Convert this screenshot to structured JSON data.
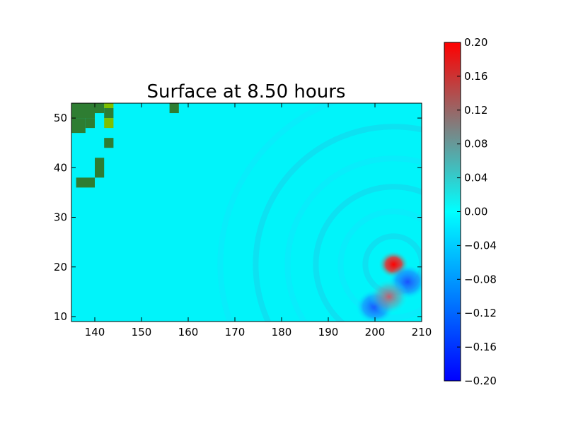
{
  "chart_data": {
    "type": "heatmap",
    "title": "Surface at 8.50 hours",
    "xlabel": "",
    "ylabel": "",
    "xlim": [
      135,
      210
    ],
    "ylim": [
      9,
      53
    ],
    "x_ticks": [
      "140",
      "150",
      "160",
      "170",
      "180",
      "190",
      "200",
      "210"
    ],
    "y_ticks": [
      "10",
      "20",
      "30",
      "40",
      "50"
    ],
    "colorbar": {
      "range": [
        -0.2,
        0.2
      ],
      "ticks": [
        "0.20",
        "0.16",
        "0.12",
        "0.08",
        "0.04",
        "0.00",
        "−0.04",
        "−0.08",
        "−0.12",
        "−0.16",
        "−0.20"
      ],
      "colors": [
        "#0000ff",
        "#00ffff",
        "#ff0000"
      ]
    },
    "land_color": "#2e7d32",
    "land_highlight_color": "#7fbf00",
    "background_value": 0.0,
    "features": [
      {
        "kind": "positive",
        "x": 204,
        "y": 20.5,
        "value": 0.2
      },
      {
        "kind": "negative",
        "x": 207,
        "y": 17,
        "value": -0.13
      },
      {
        "kind": "negative",
        "x": 200,
        "y": 12,
        "value": -0.1
      },
      {
        "kind": "positive",
        "x": 203,
        "y": 14,
        "value": 0.08
      }
    ]
  }
}
